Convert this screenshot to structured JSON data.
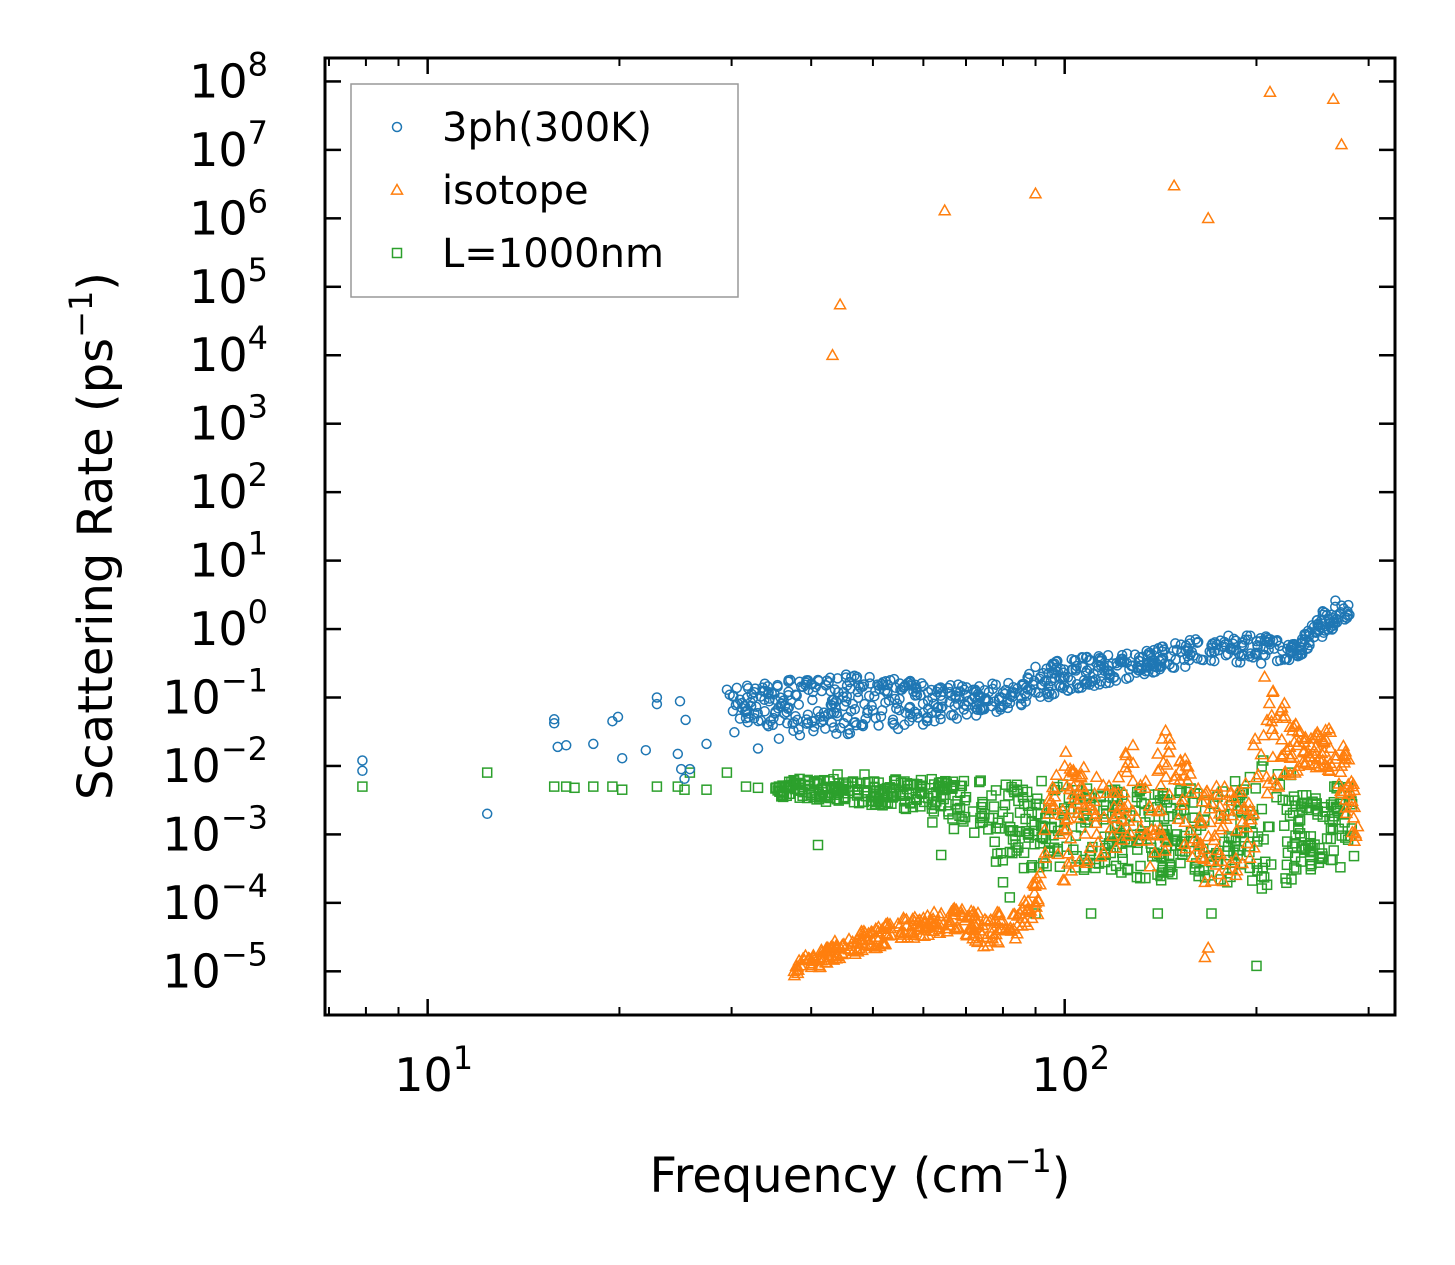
{
  "chart_data": {
    "type": "scatter",
    "title": "",
    "xlabel": "Frequency (cm⁻¹)",
    "xlabel_base": "Frequency (cm",
    "xlabel_sup": "−1",
    "xlabel_end": ")",
    "ylabel": "Scattering Rate (ps⁻¹)",
    "ylabel_base": "Scattering Rate (ps",
    "ylabel_sup": "−1",
    "ylabel_end": ")",
    "xscale": "log",
    "yscale": "log",
    "xlim": [
      6.9,
      330
    ],
    "ylim": [
      2.3e-06,
      220000000.0
    ],
    "xticks": [
      {
        "base": "10",
        "exp": "1",
        "value": 10
      },
      {
        "base": "10",
        "exp": "2",
        "value": 100
      }
    ],
    "yticks": [
      {
        "base": "10",
        "exp": "−5",
        "value": 1e-05
      },
      {
        "base": "10",
        "exp": "−4",
        "value": 0.0001
      },
      {
        "base": "10",
        "exp": "−3",
        "value": 0.001
      },
      {
        "base": "10",
        "exp": "−2",
        "value": 0.01
      },
      {
        "base": "10",
        "exp": "−1",
        "value": 0.1
      },
      {
        "base": "10",
        "exp": "0",
        "value": 1
      },
      {
        "base": "10",
        "exp": "1",
        "value": 10
      },
      {
        "base": "10",
        "exp": "2",
        "value": 100
      },
      {
        "base": "10",
        "exp": "3",
        "value": 1000.0
      },
      {
        "base": "10",
        "exp": "4",
        "value": 10000.0
      },
      {
        "base": "10",
        "exp": "5",
        "value": 100000.0
      },
      {
        "base": "10",
        "exp": "6",
        "value": 1000000.0
      },
      {
        "base": "10",
        "exp": "7",
        "value": 10000000.0
      },
      {
        "base": "10",
        "exp": "8",
        "value": 100000000.0
      }
    ],
    "legend_position": "top-left",
    "grid": false,
    "series": [
      {
        "name": "3ph(300K)",
        "marker": "circle",
        "color": "#1f77b4",
        "points": [
          [
            7.9,
            0.012
          ],
          [
            7.9,
            0.0085
          ],
          [
            12.4,
            0.002
          ],
          [
            15.8,
            0.048
          ],
          [
            15.8,
            0.042
          ],
          [
            16.0,
            0.019
          ],
          [
            16.5,
            0.02
          ],
          [
            18.2,
            0.021
          ],
          [
            19.5,
            0.045
          ],
          [
            19.9,
            0.052
          ],
          [
            20.2,
            0.013
          ],
          [
            22.0,
            0.017
          ],
          [
            22.9,
            0.1
          ],
          [
            22.9,
            0.08
          ],
          [
            24.7,
            0.015
          ],
          [
            24.9,
            0.088
          ],
          [
            25.4,
            0.047
          ],
          [
            25.0,
            0.009
          ],
          [
            25.8,
            0.009
          ],
          [
            25.3,
            0.0065
          ],
          [
            27.4,
            0.021
          ],
          [
            29.5,
            0.13
          ],
          [
            29.8,
            0.11
          ],
          [
            30.3,
            0.031
          ],
          [
            31.6,
            0.05
          ],
          [
            32.2,
            0.075
          ],
          [
            33.0,
            0.018
          ],
          [
            34.3,
            0.12
          ],
          [
            34.9,
            0.05
          ],
          [
            35.6,
            0.025
          ],
          [
            36.2,
            0.09
          ],
          [
            37.8,
            0.11
          ],
          [
            38.4,
            0.028
          ],
          [
            39.6,
            0.13
          ],
          [
            40.1,
            0.045
          ],
          [
            41.0,
            0.18
          ],
          [
            42.2,
            0.15
          ],
          [
            43.0,
            0.06
          ],
          [
            44.0,
            0.19
          ],
          [
            45.0,
            0.12
          ],
          [
            46.0,
            0.03
          ],
          [
            47.2,
            0.2
          ],
          [
            48.5,
            0.08
          ],
          [
            49.5,
            0.16
          ],
          [
            50.5,
            0.05
          ],
          [
            52.0,
            0.15
          ],
          [
            53.0,
            0.09
          ],
          [
            54.0,
            0.04
          ],
          [
            55.5,
            0.13
          ],
          [
            57.0,
            0.07
          ],
          [
            58.5,
            0.12
          ],
          [
            60.0,
            0.06
          ],
          [
            62.0,
            0.1
          ],
          [
            64.0,
            0.07
          ],
          [
            66.0,
            0.12
          ],
          [
            68.0,
            0.08
          ],
          [
            70.0,
            0.11
          ],
          [
            73.0,
            0.09
          ],
          [
            76.0,
            0.12
          ],
          [
            79.0,
            0.1
          ],
          [
            83.0,
            0.12
          ],
          [
            87.0,
            0.14
          ],
          [
            90.0,
            0.28
          ],
          [
            93.0,
            0.17
          ],
          [
            96.0,
            0.3
          ],
          [
            100.0,
            0.2
          ],
          [
            104.0,
            0.35
          ],
          [
            108.0,
            0.23
          ],
          [
            113.0,
            0.28
          ],
          [
            118.0,
            0.22
          ],
          [
            124.0,
            0.33
          ],
          [
            130.0,
            0.28
          ],
          [
            136.0,
            0.45
          ],
          [
            142.0,
            0.55
          ],
          [
            150.0,
            0.5
          ],
          [
            156.0,
            0.4
          ],
          [
            162.0,
            0.65
          ],
          [
            170.0,
            0.45
          ],
          [
            178.0,
            0.55
          ],
          [
            186.0,
            0.5
          ],
          [
            194.0,
            0.7
          ],
          [
            200.0,
            0.45
          ],
          [
            210.0,
            0.6
          ],
          [
            218.0,
            0.35
          ],
          [
            226.0,
            0.5
          ],
          [
            234.0,
            0.55
          ],
          [
            242.0,
            0.8
          ],
          [
            250.0,
            1.2
          ],
          [
            258.0,
            1.6
          ],
          [
            266.0,
            2.6
          ],
          [
            272.0,
            2.2
          ],
          [
            278.0,
            1.8
          ]
        ],
        "bands": [
          [
            [
              30,
              0.045,
              0.16
            ],
            [
              45,
              0.025,
              0.22
            ],
            [
              60,
              0.04,
              0.17
            ],
            [
              80,
              0.06,
              0.16
            ],
            [
              100,
              0.12,
              0.38
            ],
            [
              130,
              0.2,
              0.45
            ],
            [
              160,
              0.3,
              0.75
            ],
            [
              200,
              0.3,
              0.85
            ],
            [
              230,
              0.35,
              0.6
            ],
            [
              255,
              0.8,
              2.0
            ],
            [
              280,
              1.5,
              2.5
            ]
          ]
        ]
      },
      {
        "name": "isotope",
        "marker": "triangle",
        "color": "#ff7f0e",
        "points": [
          [
            43.2,
            10000
          ],
          [
            44.4,
            55000
          ],
          [
            64.8,
            1300000
          ],
          [
            90.0,
            2300000
          ],
          [
            148.5,
            3000000
          ],
          [
            168.0,
            1000000
          ],
          [
            210.0,
            70000000
          ],
          [
            264.0,
            55000000
          ],
          [
            272.0,
            12000000
          ],
          [
            37.6,
            1e-05
          ],
          [
            40.0,
            1.3e-05
          ],
          [
            42.0,
            1.6e-05
          ],
          [
            44.5,
            2.2e-05
          ],
          [
            48.0,
            2.8e-05
          ],
          [
            51.0,
            3.8e-05
          ],
          [
            55.0,
            4.5e-05
          ],
          [
            60.0,
            6e-05
          ],
          [
            64.0,
            7e-05
          ],
          [
            69.0,
            8e-05
          ],
          [
            73.0,
            5e-05
          ],
          [
            77.0,
            3e-05
          ],
          [
            82.0,
            4e-05
          ],
          [
            86.0,
            6e-05
          ],
          [
            90.0,
            0.0001
          ],
          [
            95.0,
            0.003
          ],
          [
            100.0,
            0.01
          ],
          [
            106.0,
            0.005
          ],
          [
            112.0,
            0.002
          ],
          [
            120.0,
            0.004
          ],
          [
            128.0,
            0.02
          ],
          [
            134.0,
            0.006
          ],
          [
            140.0,
            0.015
          ],
          [
            146.0,
            0.025
          ],
          [
            152.0,
            0.012
          ],
          [
            158.0,
            0.004
          ],
          [
            163.0,
            0.0015
          ],
          [
            166.0,
            0.0002
          ],
          [
            166.0,
            1.6e-05
          ],
          [
            168.0,
            2.2e-05
          ],
          [
            175.0,
            0.002
          ],
          [
            182.0,
            0.004
          ],
          [
            190.0,
            0.0015
          ],
          [
            198.0,
            0.02
          ],
          [
            206.0,
            0.2
          ],
          [
            212.0,
            0.12
          ],
          [
            220.0,
            0.05
          ],
          [
            232.0,
            0.02
          ],
          [
            246.0,
            0.025
          ],
          [
            260.0,
            0.035
          ],
          [
            272.0,
            0.01
          ],
          [
            285.0,
            0.0008
          ]
        ],
        "bands": [
          [
            [
              37.5,
              8.5e-06,
              1.4e-05
            ],
            [
              45,
              1.5e-05,
              3.2e-05
            ],
            [
              55,
              2.8e-05,
              6e-05
            ],
            [
              68,
              4e-05,
              9e-05
            ],
            [
              75,
              2.2e-05,
              7e-05
            ],
            [
              85,
              3e-05,
              8e-05
            ],
            [
              92,
              8e-05,
              0.0004
            ]
          ],
          [
            [
              93,
              0.0004,
              0.004
            ],
            [
              100,
              0.0002,
              0.02
            ],
            [
              110,
              0.0003,
              0.008
            ],
            [
              120,
              0.0005,
              0.005
            ],
            [
              128,
              0.0008,
              0.04
            ],
            [
              136,
              0.0003,
              0.01
            ],
            [
              145,
              0.0005,
              0.045
            ],
            [
              155,
              0.0004,
              0.012
            ],
            [
              165,
              0.0002,
              0.004
            ],
            [
              178,
              0.0002,
              0.006
            ],
            [
              192,
              0.0003,
              0.006
            ],
            [
              200,
              0.0005,
              0.03
            ],
            [
              210,
              0.003,
              0.15
            ],
            [
              222,
              0.006,
              0.08
            ],
            [
              240,
              0.01,
              0.025
            ],
            [
              258,
              0.008,
              0.04
            ],
            [
              275,
              0.002,
              0.02
            ],
            [
              290,
              0.0006,
              0.004
            ]
          ]
        ]
      },
      {
        "name": "L=1000nm",
        "marker": "square",
        "color": "#2ca02c",
        "points": [
          [
            7.9,
            0.005
          ],
          [
            12.4,
            0.008
          ],
          [
            15.8,
            0.005
          ],
          [
            16.5,
            0.005
          ],
          [
            17.0,
            0.0048
          ],
          [
            18.2,
            0.005
          ],
          [
            19.5,
            0.005
          ],
          [
            20.2,
            0.0045
          ],
          [
            22.9,
            0.005
          ],
          [
            24.7,
            0.005
          ],
          [
            25.3,
            0.0045
          ],
          [
            25.8,
            0.008
          ],
          [
            27.4,
            0.0045
          ],
          [
            29.5,
            0.008
          ],
          [
            31.6,
            0.005
          ],
          [
            33.0,
            0.0048
          ],
          [
            35.6,
            0.005
          ],
          [
            38.4,
            0.0045
          ],
          [
            41.0,
            0.0007
          ],
          [
            42.2,
            0.003
          ],
          [
            44.0,
            0.0075
          ],
          [
            45.0,
            0.004
          ],
          [
            48.5,
            0.0075
          ],
          [
            51.0,
            0.003
          ],
          [
            54.0,
            0.006
          ],
          [
            57.0,
            0.004
          ],
          [
            62.0,
            0.0015
          ],
          [
            64.0,
            0.0005
          ],
          [
            67.0,
            0.0012
          ],
          [
            70.0,
            0.0035
          ],
          [
            74.0,
            0.0025
          ],
          [
            78.0,
            0.0004
          ],
          [
            80.0,
            0.0002
          ],
          [
            82.0,
            0.00012
          ],
          [
            86.0,
            0.0035
          ],
          [
            90.0,
            7e-05
          ],
          [
            92.0,
            0.006
          ],
          [
            100.0,
            0.0015
          ],
          [
            110.0,
            7e-05
          ],
          [
            120.0,
            0.0045
          ],
          [
            130.0,
            0.0006
          ],
          [
            140.0,
            7e-05
          ],
          [
            150.0,
            0.001
          ],
          [
            160.0,
            0.004
          ],
          [
            170.0,
            7e-05
          ],
          [
            180.0,
            0.0002
          ],
          [
            190.0,
            0.004
          ],
          [
            200.0,
            1.2e-05
          ],
          [
            205.0,
            0.012
          ],
          [
            215.0,
            0.0035
          ],
          [
            225.0,
            0.008
          ],
          [
            235.0,
            0.0004
          ],
          [
            245.0,
            0.003
          ],
          [
            255.0,
            0.0025
          ],
          [
            265.0,
            0.005
          ],
          [
            275.0,
            0.0015
          ],
          [
            282.0,
            0.003
          ]
        ],
        "bands": [
          [
            [
              35,
              0.0035,
              0.0065
            ],
            [
              45,
              0.003,
              0.0065
            ],
            [
              60,
              0.0022,
              0.0065
            ],
            [
              70,
              0.0015,
              0.0062
            ],
            [
              80,
              0.0003,
              0.0065
            ],
            [
              90,
              0.0003,
              0.006
            ],
            [
              100,
              0.0003,
              0.0055
            ],
            [
              112,
              0.0003,
              0.005
            ],
            [
              125,
              0.00025,
              0.0045
            ],
            [
              140,
              0.0002,
              0.005
            ],
            [
              155,
              0.0003,
              0.005
            ],
            [
              170,
              0.0002,
              0.004
            ],
            [
              185,
              0.0002,
              0.006
            ],
            [
              200,
              0.00015,
              0.01
            ],
            [
              212,
              0.00015,
              0.012
            ],
            [
              225,
              0.0002,
              0.008
            ],
            [
              240,
              0.0003,
              0.004
            ],
            [
              255,
              0.0003,
              0.004
            ],
            [
              270,
              0.0003,
              0.006
            ],
            [
              285,
              0.0003,
              0.005
            ]
          ]
        ]
      }
    ]
  }
}
